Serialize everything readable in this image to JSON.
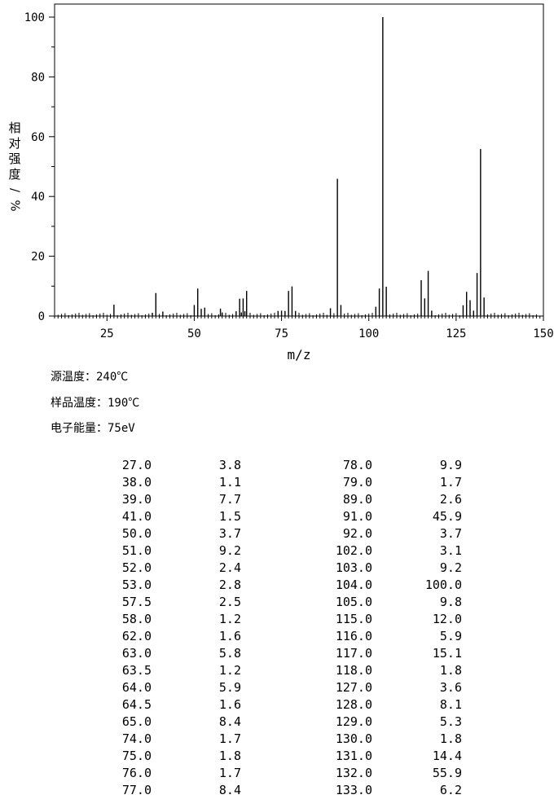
{
  "chart_data": {
    "type": "bar",
    "xlabel": "m/z",
    "ylabel": "相对强度/%",
    "xlim": [
      10,
      150
    ],
    "ylim": [
      0,
      100
    ],
    "x_ticks": [
      25,
      50,
      75,
      100,
      125,
      150
    ],
    "y_ticks": [
      0,
      20,
      40,
      60,
      80,
      100
    ],
    "grid": false,
    "peaks": [
      {
        "mz": 27.0,
        "intensity": 3.8
      },
      {
        "mz": 38.0,
        "intensity": 1.1
      },
      {
        "mz": 39.0,
        "intensity": 7.7
      },
      {
        "mz": 41.0,
        "intensity": 1.5
      },
      {
        "mz": 50.0,
        "intensity": 3.7
      },
      {
        "mz": 51.0,
        "intensity": 9.2
      },
      {
        "mz": 52.0,
        "intensity": 2.4
      },
      {
        "mz": 53.0,
        "intensity": 2.8
      },
      {
        "mz": 57.5,
        "intensity": 2.5
      },
      {
        "mz": 58.0,
        "intensity": 1.2
      },
      {
        "mz": 62.0,
        "intensity": 1.6
      },
      {
        "mz": 63.0,
        "intensity": 5.8
      },
      {
        "mz": 63.5,
        "intensity": 1.2
      },
      {
        "mz": 64.0,
        "intensity": 5.9
      },
      {
        "mz": 64.5,
        "intensity": 1.6
      },
      {
        "mz": 65.0,
        "intensity": 8.4
      },
      {
        "mz": 74.0,
        "intensity": 1.7
      },
      {
        "mz": 75.0,
        "intensity": 1.8
      },
      {
        "mz": 76.0,
        "intensity": 1.7
      },
      {
        "mz": 77.0,
        "intensity": 8.4
      },
      {
        "mz": 78.0,
        "intensity": 9.9
      },
      {
        "mz": 79.0,
        "intensity": 1.7
      },
      {
        "mz": 89.0,
        "intensity": 2.6
      },
      {
        "mz": 91.0,
        "intensity": 45.9
      },
      {
        "mz": 92.0,
        "intensity": 3.7
      },
      {
        "mz": 102.0,
        "intensity": 3.1
      },
      {
        "mz": 103.0,
        "intensity": 9.2
      },
      {
        "mz": 104.0,
        "intensity": 100.0
      },
      {
        "mz": 105.0,
        "intensity": 9.8
      },
      {
        "mz": 115.0,
        "intensity": 12.0
      },
      {
        "mz": 116.0,
        "intensity": 5.9
      },
      {
        "mz": 117.0,
        "intensity": 15.1
      },
      {
        "mz": 118.0,
        "intensity": 1.8
      },
      {
        "mz": 127.0,
        "intensity": 3.6
      },
      {
        "mz": 128.0,
        "intensity": 8.1
      },
      {
        "mz": 129.0,
        "intensity": 5.3
      },
      {
        "mz": 130.0,
        "intensity": 1.8
      },
      {
        "mz": 131.0,
        "intensity": 14.4
      },
      {
        "mz": 132.0,
        "intensity": 55.9
      },
      {
        "mz": 133.0,
        "intensity": 6.2
      }
    ]
  },
  "conditions": {
    "source_temp": "源温度：240℃",
    "sample_temp": "样品温度：190℃",
    "electron_energy": "电子能量：75eV"
  },
  "table_rows": [
    [
      "27.0",
      "3.8",
      "78.0",
      "9.9"
    ],
    [
      "38.0",
      "1.1",
      "79.0",
      "1.7"
    ],
    [
      "39.0",
      "7.7",
      "89.0",
      "2.6"
    ],
    [
      "41.0",
      "1.5",
      "91.0",
      "45.9"
    ],
    [
      "50.0",
      "3.7",
      "92.0",
      "3.7"
    ],
    [
      "51.0",
      "9.2",
      "102.0",
      "3.1"
    ],
    [
      "52.0",
      "2.4",
      "103.0",
      "9.2"
    ],
    [
      "53.0",
      "2.8",
      "104.0",
      "100.0"
    ],
    [
      "57.5",
      "2.5",
      "105.0",
      "9.8"
    ],
    [
      "58.0",
      "1.2",
      "115.0",
      "12.0"
    ],
    [
      "62.0",
      "1.6",
      "116.0",
      "5.9"
    ],
    [
      "63.0",
      "5.8",
      "117.0",
      "15.1"
    ],
    [
      "63.5",
      "1.2",
      "118.0",
      "1.8"
    ],
    [
      "64.0",
      "5.9",
      "127.0",
      "3.6"
    ],
    [
      "64.5",
      "1.6",
      "128.0",
      "8.1"
    ],
    [
      "65.0",
      "8.4",
      "129.0",
      "5.3"
    ],
    [
      "74.0",
      "1.7",
      "130.0",
      "1.8"
    ],
    [
      "75.0",
      "1.8",
      "131.0",
      "14.4"
    ],
    [
      "76.0",
      "1.7",
      "132.0",
      "55.9"
    ],
    [
      "77.0",
      "8.4",
      "133.0",
      "6.2"
    ]
  ]
}
